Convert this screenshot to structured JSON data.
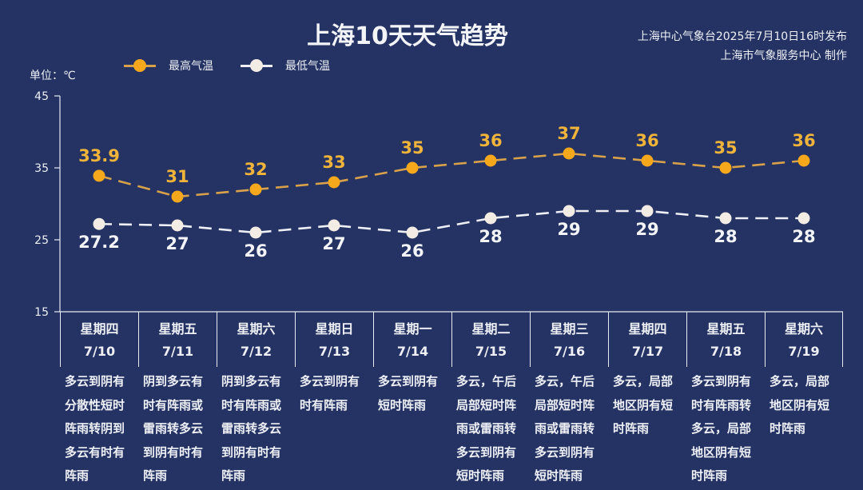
{
  "header": {
    "title": "上海10天天气趋势",
    "source_line1": "上海中心气象台2025年7月10日16时发布",
    "source_line2": "上海市气象服务中心 制作"
  },
  "unit_label": "单位：℃",
  "legend": [
    {
      "label": "最高气温",
      "color": "#f5a81c"
    },
    {
      "label": "最低气温",
      "color": "#f3ece4"
    }
  ],
  "colors": {
    "background": "#243363",
    "high": "#f5a81c",
    "high_label": "#f1b43a",
    "low": "#f3ece4",
    "axis": "#e8ebf3"
  },
  "days": [
    {
      "weekday": "星期四",
      "date": "7/10",
      "desc": "多云到阴有分散性短时阵雨转阴到多云有时有阵雨"
    },
    {
      "weekday": "星期五",
      "date": "7/11",
      "desc": "阴到多云有时有阵雨或雷雨转多云到阴有时有阵雨"
    },
    {
      "weekday": "星期六",
      "date": "7/12",
      "desc": "阴到多云有时有阵雨或雷雨转多云到阴有时有阵雨"
    },
    {
      "weekday": "星期日",
      "date": "7/13",
      "desc": "多云到阴有时有阵雨"
    },
    {
      "weekday": "星期一",
      "date": "7/14",
      "desc": "多云到阴有短时阵雨"
    },
    {
      "weekday": "星期二",
      "date": "7/15",
      "desc": "多云，午后局部短时阵雨或雷雨转多云到阴有短时阵雨"
    },
    {
      "weekday": "星期三",
      "date": "7/16",
      "desc": "多云，午后局部短时阵雨或雷雨转多云到阴有短时阵雨"
    },
    {
      "weekday": "星期四",
      "date": "7/17",
      "desc": "多云，局部地区阴有短时阵雨"
    },
    {
      "weekday": "星期五",
      "date": "7/18",
      "desc": "多云到阴有时有阵雨转多云，局部地区阴有短时阵雨"
    },
    {
      "weekday": "星期六",
      "date": "7/19",
      "desc": "多云，局部地区阴有短时阵雨"
    }
  ],
  "chart_data": {
    "type": "line",
    "title": "上海10天天气趋势",
    "xlabel": "",
    "ylabel": "单位：℃",
    "categories": [
      "7/10",
      "7/11",
      "7/12",
      "7/13",
      "7/14",
      "7/15",
      "7/16",
      "7/17",
      "7/18",
      "7/19"
    ],
    "series": [
      {
        "name": "最高气温",
        "values": [
          33.9,
          31,
          32,
          33,
          35,
          36,
          37,
          36,
          35,
          36
        ],
        "labels": [
          "33.9",
          "31",
          "32",
          "33",
          "35",
          "36",
          "37",
          "36",
          "35",
          "36"
        ]
      },
      {
        "name": "最低气温",
        "values": [
          27.2,
          27,
          26,
          27,
          26,
          28,
          29,
          29,
          28,
          28
        ],
        "labels": [
          "27.2",
          "27",
          "26",
          "27",
          "26",
          "28",
          "29",
          "29",
          "28",
          "28"
        ]
      }
    ],
    "yticks": [
      45,
      35,
      25,
      15
    ],
    "ylim": [
      15,
      45
    ],
    "grid": false,
    "legend_position": "top-left",
    "line_style": "dashed"
  }
}
